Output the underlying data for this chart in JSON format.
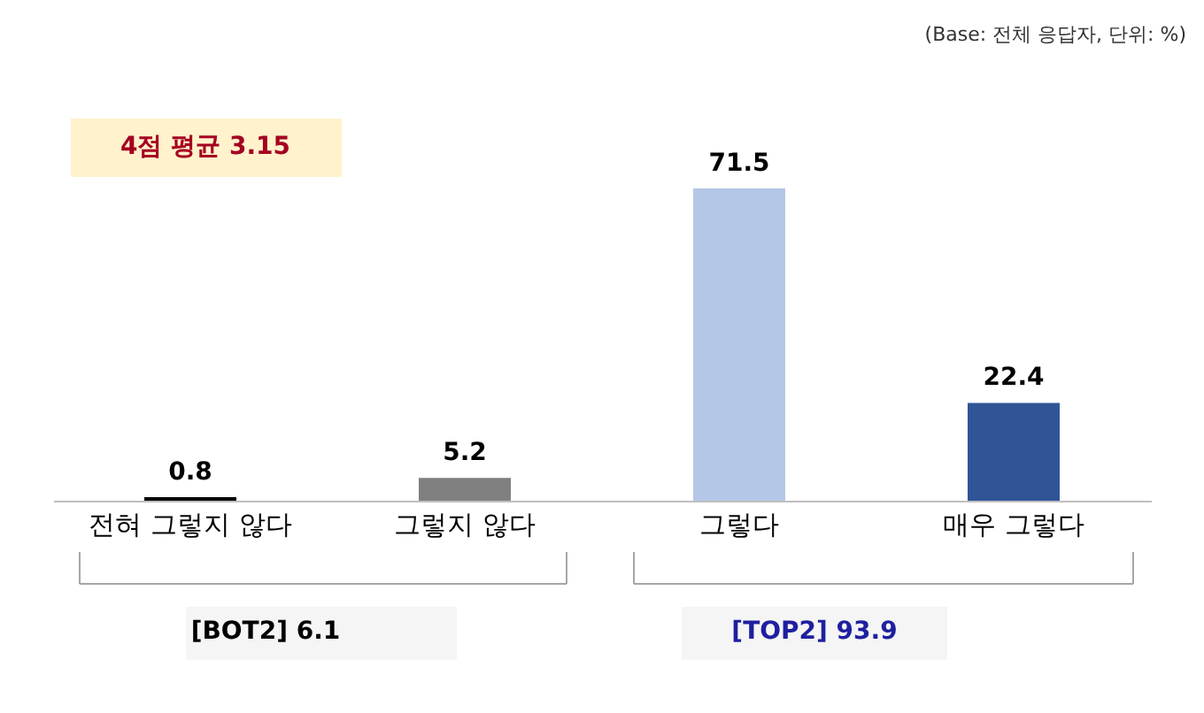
{
  "chart_data": {
    "type": "bar",
    "categories": [
      "전혀 그렇지 않다",
      "그렇지 않다",
      "그렇다",
      "매우 그렇다"
    ],
    "values": [
      0.8,
      5.2,
      71.5,
      22.4
    ],
    "colors": [
      "#000000",
      "#808080",
      "#b4c7e7",
      "#2f5597"
    ],
    "data_labels": true,
    "annotations": [
      "(Base: 전체 응답자, 단위: %)",
      "4점 평균 3.15",
      "[BOT2] 6.1",
      "[TOP2] 93.9"
    ]
  }
}
